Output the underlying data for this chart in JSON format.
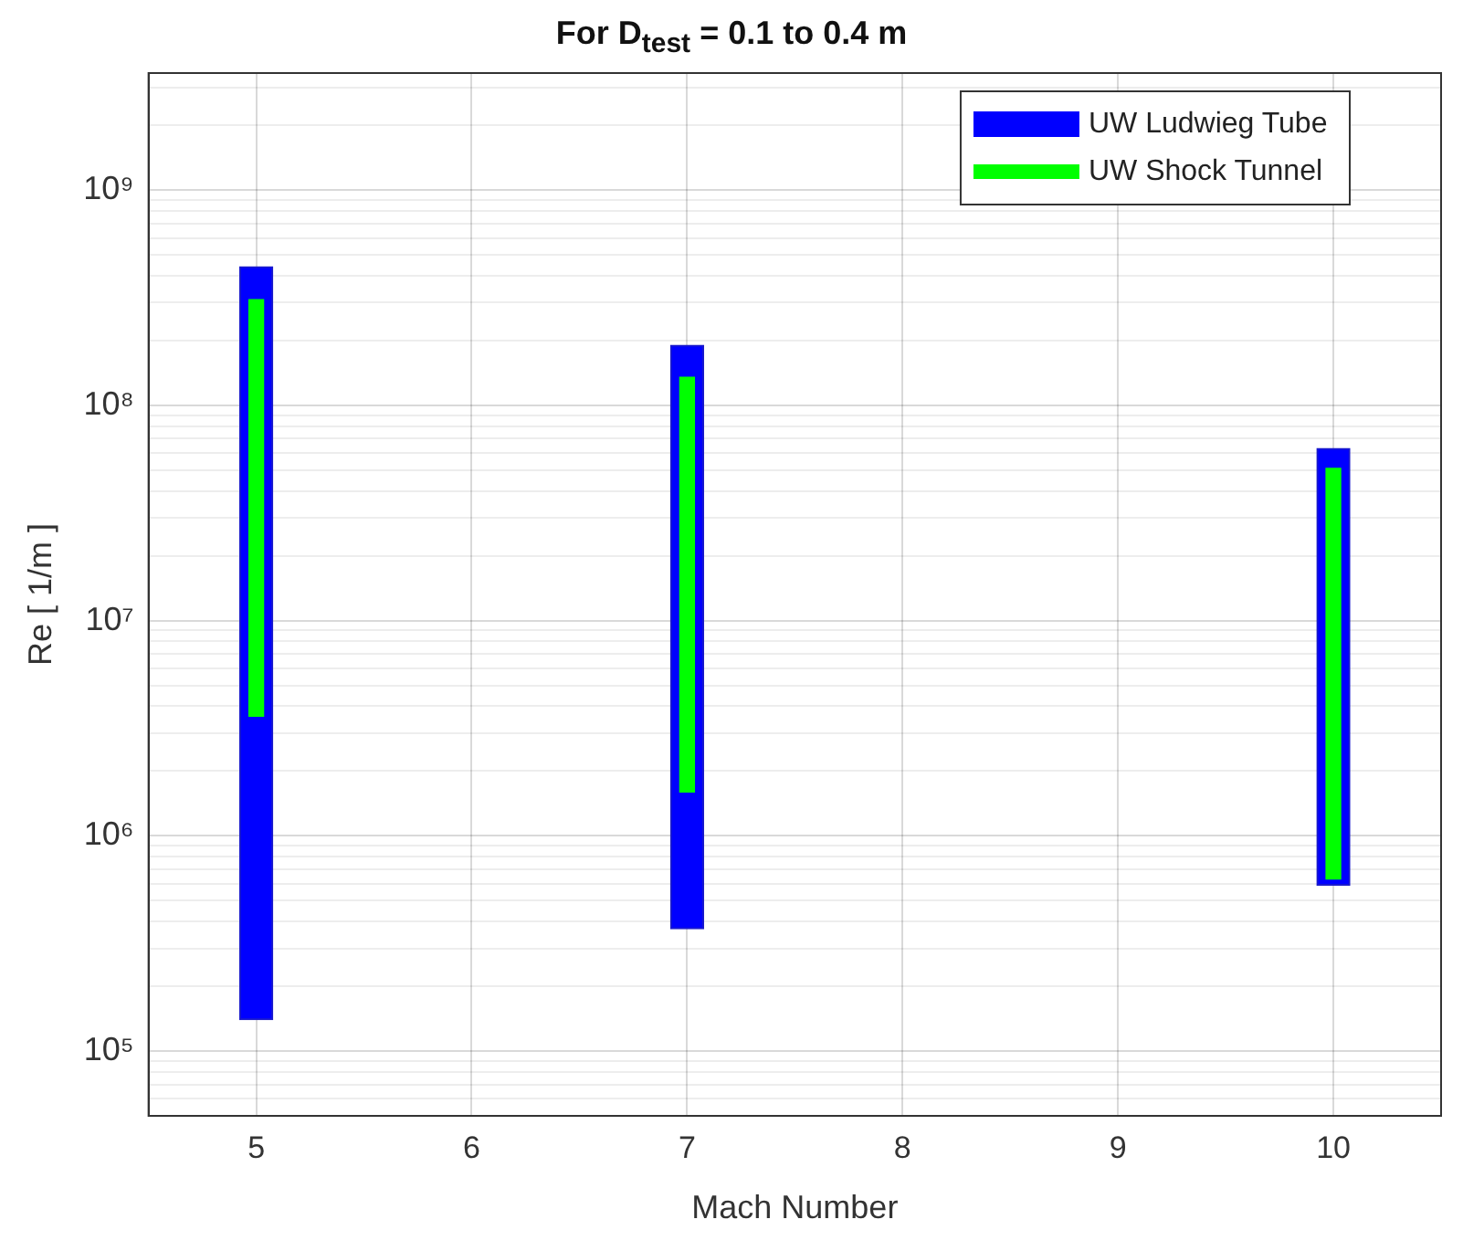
{
  "chart_data": {
    "type": "bar",
    "title": "For D$_{test}$ = 0.1 to 0.4 m",
    "xlabel": "Mach Number",
    "ylabel": "Re [ 1/m ]",
    "x": [
      5,
      7,
      10
    ],
    "series": [
      {
        "name": "UW Ludwieg Tube",
        "color": "#0000ff",
        "base": [
          140000,
          370000,
          590000
        ],
        "values": [
          439860000,
          189630000,
          62410000
        ]
      },
      {
        "name": "UW Shock Tunnel",
        "color": "#00ff00",
        "base": [
          3600000,
          1600000,
          630000
        ],
        "values": [
          306400000,
          133400000,
          50370000
        ]
      }
    ],
    "xlim": [
      4.5,
      10.5
    ],
    "xticks": [
      5,
      6,
      7,
      8,
      9,
      10
    ],
    "ylim": [
      50000,
      3500000000
    ],
    "yticks": [
      {
        "value": 60000,
        "label": null
      },
      {
        "value": 70000,
        "label": null
      },
      {
        "value": 80000,
        "label": null
      },
      {
        "value": 90000,
        "label": null
      },
      {
        "value": 100000,
        "label": "10⁵"
      },
      {
        "value": 200000,
        "label": null
      },
      {
        "value": 300000,
        "label": null
      },
      {
        "value": 400000,
        "label": null
      },
      {
        "value": 500000,
        "label": null
      },
      {
        "value": 600000,
        "label": null
      },
      {
        "value": 700000,
        "label": null
      },
      {
        "value": 800000,
        "label": null
      },
      {
        "value": 900000,
        "label": null
      },
      {
        "value": 1000000,
        "label": "10⁶"
      },
      {
        "value": 2000000,
        "label": null
      },
      {
        "value": 3000000,
        "label": null
      },
      {
        "value": 4000000,
        "label": null
      },
      {
        "value": 5000000,
        "label": null
      },
      {
        "value": 6000000,
        "label": null
      },
      {
        "value": 7000000,
        "label": null
      },
      {
        "value": 8000000,
        "label": null
      },
      {
        "value": 9000000,
        "label": null
      },
      {
        "value": 10000000,
        "label": "10⁷"
      },
      {
        "value": 20000000,
        "label": null
      },
      {
        "value": 30000000,
        "label": null
      },
      {
        "value": 40000000,
        "label": null
      },
      {
        "value": 50000000,
        "label": null
      },
      {
        "value": 60000000,
        "label": null
      },
      {
        "value": 70000000,
        "label": null
      },
      {
        "value": 80000000,
        "label": null
      },
      {
        "value": 90000000,
        "label": null
      },
      {
        "value": 100000000,
        "label": "10⁸"
      },
      {
        "value": 200000000,
        "label": null
      },
      {
        "value": 300000000,
        "label": null
      },
      {
        "value": 400000000,
        "label": null
      },
      {
        "value": 500000000,
        "label": null
      },
      {
        "value": 600000000,
        "label": null
      },
      {
        "value": 700000000,
        "label": null
      },
      {
        "value": 800000000,
        "label": null
      },
      {
        "value": 900000000,
        "label": null
      },
      {
        "value": 1000000000,
        "label": "10⁹"
      },
      {
        "value": 2000000000,
        "label": null
      },
      {
        "value": 3000000000,
        "label": null
      }
    ],
    "log": "y",
    "grid": true,
    "legend": "top right"
  }
}
